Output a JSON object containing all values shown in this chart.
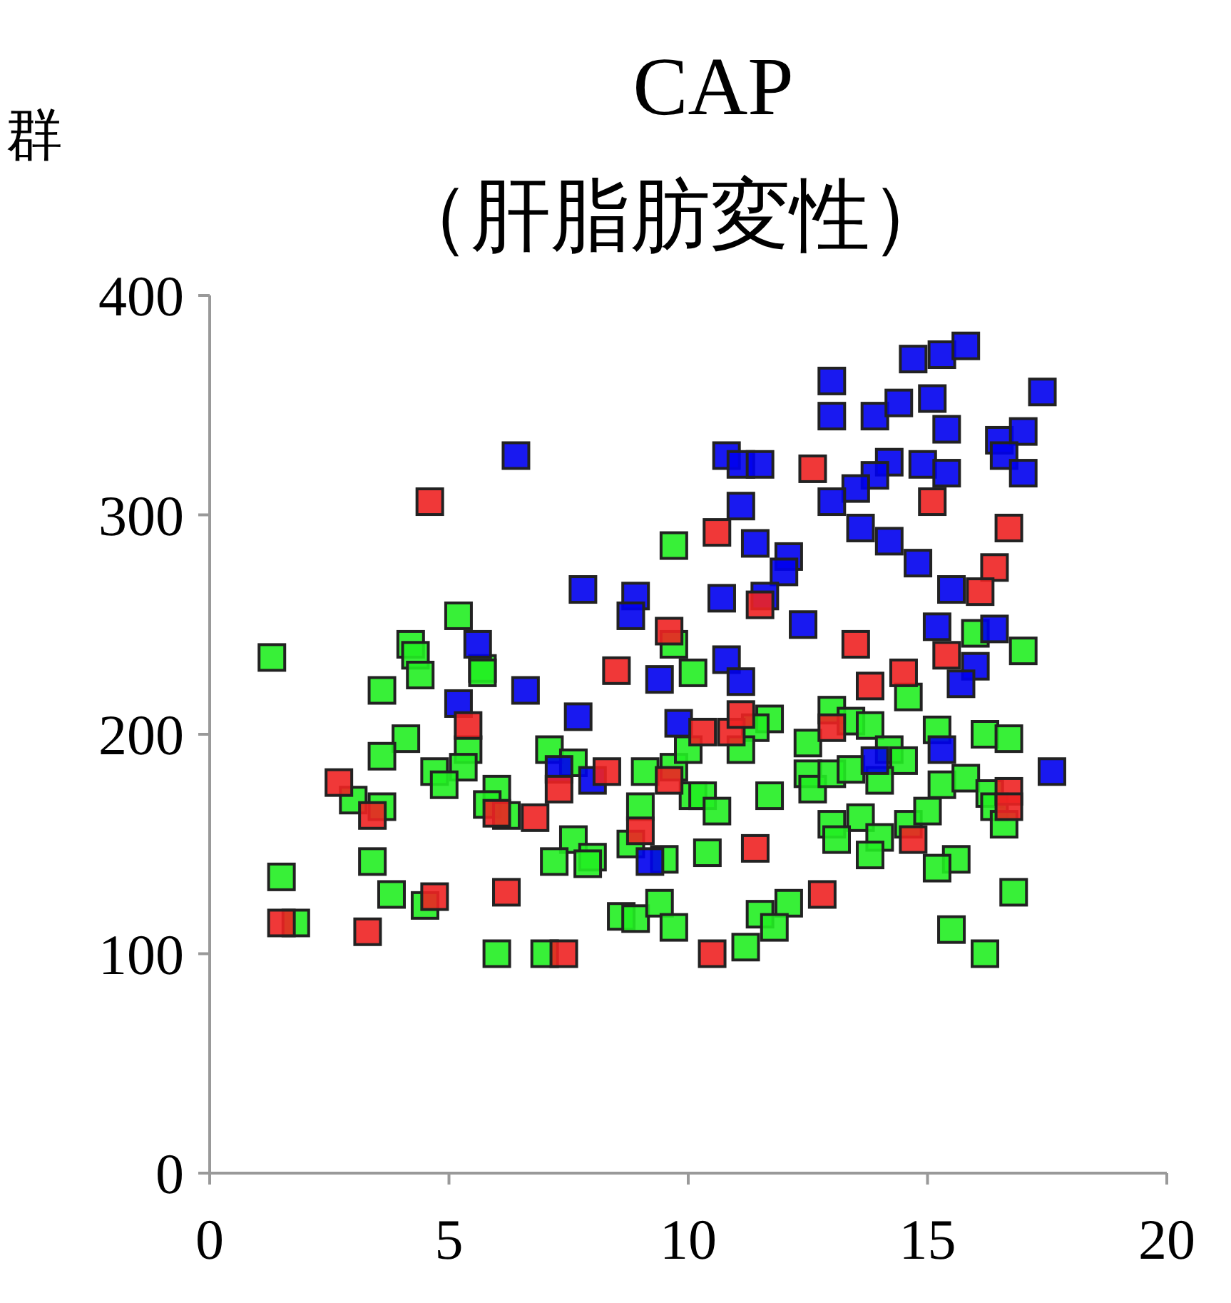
{
  "chart_data": {
    "type": "scatter",
    "title": "CAP",
    "subtitle": "（肝脂肪変性）",
    "annotations": [
      "群"
    ],
    "marker": "square",
    "xlim": [
      0,
      20
    ],
    "xticks": [
      0,
      5,
      10,
      15,
      20
    ],
    "ylim": [
      0,
      400
    ],
    "yticks": [
      0,
      100,
      200,
      300,
      400
    ],
    "series": [
      {
        "color": "#22ee22",
        "x": [
          1.3,
          9.7,
          5.2,
          4.2,
          4.3,
          5.7,
          9.7,
          4.4,
          3.6,
          5.7,
          4.1,
          3.6,
          5.4,
          5.3,
          4.7,
          4.9,
          3.0,
          3.6,
          6.0,
          5.8,
          6.2,
          7.1,
          7.6,
          9.1,
          9.7,
          10.1,
          9.0,
          8.8,
          9.5,
          7.6,
          7.2,
          8.0,
          7.9,
          3.4,
          1.5,
          3.8,
          4.5,
          1.8,
          6.0,
          7.0,
          8.6,
          8.9,
          9.4,
          9.7,
          17.0,
          10.1,
          14.6,
          11.7,
          11.4,
          11.1,
          10.0,
          13.0,
          13.4,
          13.8,
          12.5,
          14.2,
          14.5,
          15.2,
          16.2,
          16.7,
          12.5,
          12.6,
          13.0,
          13.4,
          14.0,
          15.3,
          15.8,
          16.3,
          16.4,
          16.6,
          11.7,
          10.3,
          10.6,
          13.0,
          13.6,
          13.1,
          14.0,
          13.8,
          14.6,
          15.0,
          15.6,
          15.2,
          10.4,
          16.8,
          12.1,
          11.5,
          11.8,
          11.2,
          15.5,
          16.2,
          16.0
        ],
        "values": [
          235,
          286,
          254,
          241,
          236,
          230,
          241,
          227,
          220,
          228,
          198,
          190,
          193,
          185,
          183,
          177,
          170,
          167,
          175,
          168,
          163,
          193,
          187,
          183,
          185,
          172,
          167,
          150,
          143,
          152,
          142,
          144,
          141,
          142,
          135,
          127,
          122,
          114,
          100,
          100,
          117,
          116,
          123,
          112,
          238,
          228,
          217,
          207,
          203,
          193,
          193,
          211,
          206,
          204,
          196,
          193,
          188,
          202,
          200,
          198,
          182,
          175,
          182,
          184,
          179,
          177,
          180,
          173,
          167,
          159,
          172,
          172,
          165,
          159,
          162,
          152,
          153,
          145,
          159,
          165,
          143,
          139,
          146,
          128,
          123,
          118,
          112,
          103,
          111,
          100,
          246
        ]
      },
      {
        "color": "#0000ee",
        "x": [
          14.7,
          15.3,
          15.8,
          17.4,
          13.0,
          13.0,
          13.9,
          14.4,
          15.1,
          15.4,
          16.5,
          17.0,
          16.6,
          17.0,
          10.8,
          11.1,
          11.5,
          14.2,
          14.9,
          15.4,
          13.9,
          13.5,
          13.0,
          11.1,
          13.6,
          14.2,
          14.8,
          11.4,
          12.1,
          12.0,
          10.7,
          11.6,
          15.5,
          12.4,
          15.2,
          16.4,
          10.8,
          6.4,
          7.8,
          8.9,
          8.8,
          5.6,
          6.6,
          5.2,
          7.7,
          7.3,
          8.0,
          9.8,
          9.4,
          9.2,
          11.1,
          16.0,
          15.7,
          13.9,
          15.3,
          17.6
        ],
        "values": [
          371,
          373,
          377,
          356,
          361,
          345,
          345,
          351,
          353,
          339,
          334,
          338,
          327,
          319,
          327,
          323,
          323,
          324,
          323,
          319,
          318,
          312,
          306,
          304,
          294,
          288,
          278,
          287,
          281,
          274,
          262,
          263,
          266,
          250,
          249,
          248,
          234,
          327,
          266,
          263,
          254,
          241,
          220,
          214,
          208,
          184,
          179,
          205,
          225,
          142,
          224,
          231,
          223,
          188,
          193,
          183
        ]
      },
      {
        "color": "#ee2222",
        "x": [
          4.6,
          9.6,
          12.6,
          15.1,
          16.7,
          10.6,
          11.5,
          16.4,
          16.1,
          8.5,
          5.4,
          2.7,
          3.4,
          6.0,
          6.8,
          7.3,
          8.3,
          9.0,
          9.6,
          4.7,
          6.2,
          1.5,
          3.3,
          7.4,
          13.5,
          13.8,
          14.5,
          15.4,
          10.3,
          10.9,
          11.1,
          13.0,
          16.7,
          16.7,
          14.7,
          11.4,
          12.8,
          10.5
        ],
        "values": [
          306,
          247,
          321,
          306,
          294,
          292,
          259,
          276,
          265,
          229,
          204,
          178,
          163,
          164,
          162,
          175,
          183,
          156,
          179,
          126,
          128,
          114,
          110,
          100,
          241,
          222,
          228,
          236,
          201,
          201,
          209,
          203,
          174,
          167,
          152,
          148,
          127,
          100
        ]
      }
    ]
  }
}
